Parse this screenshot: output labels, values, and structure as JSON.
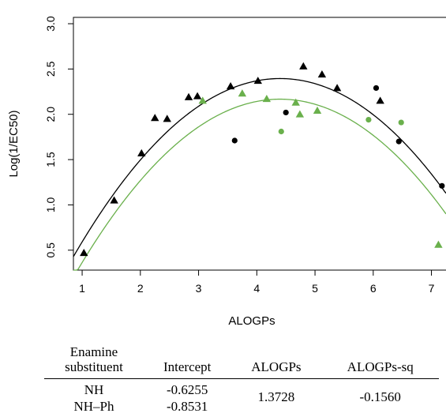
{
  "chart_data": {
    "type": "scatter",
    "xlabel": "ALOGPs",
    "ylabel": "Log(1/EC50)",
    "xlim": [
      0.85,
      7.25
    ],
    "ylim": [
      0.28,
      3.07
    ],
    "x_ticks": [
      1,
      2,
      3,
      4,
      5,
      6,
      7
    ],
    "y_ticks": [
      0.5,
      1.0,
      1.5,
      2.0,
      2.5,
      3.0
    ],
    "x_tick_labels": [
      "1",
      "2",
      "3",
      "4",
      "5",
      "6",
      "7"
    ],
    "y_tick_labels": [
      "0.5",
      "1.0",
      "1.5",
      "2.0",
      "2.5",
      "3.0"
    ],
    "grid": false,
    "series": [
      {
        "marker": "triangle",
        "color": "#000000",
        "points": [
          [
            1.03,
            0.47
          ],
          [
            1.55,
            1.05
          ],
          [
            2.02,
            1.57
          ],
          [
            2.25,
            1.96
          ],
          [
            2.46,
            1.95
          ],
          [
            2.83,
            2.19
          ],
          [
            2.98,
            2.2
          ],
          [
            3.55,
            2.31
          ],
          [
            4.02,
            2.37
          ],
          [
            4.8,
            2.53
          ],
          [
            5.12,
            2.44
          ],
          [
            5.38,
            2.29
          ],
          [
            6.12,
            2.15
          ]
        ]
      },
      {
        "marker": "circle",
        "color": "#000000",
        "points": [
          [
            3.62,
            1.71
          ],
          [
            4.5,
            2.02
          ],
          [
            6.05,
            2.29
          ],
          [
            6.44,
            1.7
          ],
          [
            7.18,
            1.21
          ]
        ]
      },
      {
        "marker": "triangle",
        "color": "#6ab04c",
        "points": [
          [
            3.07,
            2.15
          ],
          [
            3.75,
            2.23
          ],
          [
            4.17,
            2.17
          ],
          [
            4.67,
            2.13
          ],
          [
            4.74,
            2.0
          ],
          [
            5.04,
            2.04
          ],
          [
            7.12,
            0.56
          ]
        ]
      },
      {
        "marker": "circle",
        "color": "#6ab04c",
        "points": [
          [
            4.42,
            1.81
          ],
          [
            5.92,
            1.94
          ],
          [
            6.48,
            1.91
          ]
        ]
      }
    ],
    "fit_curves": [
      {
        "color": "#000000",
        "intercept": -0.6255,
        "alogps": 1.3728,
        "alogps_sq": -0.156
      },
      {
        "color": "#6ab04c",
        "intercept": -0.8531,
        "alogps": 1.3728,
        "alogps_sq": -0.156
      }
    ]
  },
  "table": {
    "headers": [
      [
        "Enamine",
        "substituent"
      ],
      "Intercept",
      "ALOGPs",
      "ALOGPs-sq"
    ],
    "rows": [
      {
        "substituent": "NH",
        "intercept": "-0.6255"
      },
      {
        "substituent": "NH–Ph",
        "intercept": "-0.8531"
      }
    ],
    "shared": {
      "alogps": "1.3728",
      "alogps_sq": "-0.1560"
    }
  }
}
